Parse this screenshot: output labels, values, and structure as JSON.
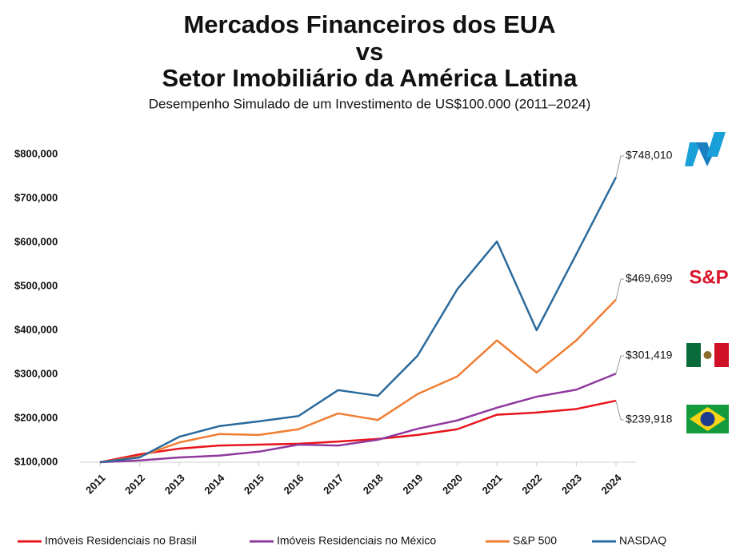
{
  "chart_data": {
    "type": "line",
    "title": [
      "Mercados Financeiros dos EUA",
      "vs",
      "Setor Imobiliário da América Latina"
    ],
    "subtitle": "Desempenho Simulado de um Investimento de US$100.000 (2011–2024)",
    "badge_text": "S&P",
    "categories": [
      "2011",
      "2012",
      "2013",
      "2014",
      "2015",
      "2016",
      "2017",
      "2018",
      "2019",
      "2020",
      "2021",
      "2022",
      "2023",
      "2024"
    ],
    "ylim": [
      100000,
      800000
    ],
    "yticks": [
      {
        "value": 100000,
        "label": "$100,000"
      },
      {
        "value": 200000,
        "label": "$200,000"
      },
      {
        "value": 300000,
        "label": "$300,000"
      },
      {
        "value": 400000,
        "label": "$400,000"
      },
      {
        "value": 500000,
        "label": "$500,000"
      },
      {
        "value": 600000,
        "label": "$600,000"
      },
      {
        "value": 700000,
        "label": "$700,000"
      },
      {
        "value": 800000,
        "label": "$800,000"
      }
    ],
    "series": [
      {
        "name": "Imóveis Residenciais no Brasil",
        "color": "#e8141b",
        "values": [
          100000,
          118000,
          131000,
          138000,
          140000,
          142000,
          147000,
          153000,
          162000,
          175000,
          208000,
          213000,
          221000,
          239918
        ],
        "value_labels": [
          null,
          null,
          null,
          null,
          null,
          null,
          null,
          null,
          null,
          null,
          null,
          null,
          null,
          "$239,918"
        ]
      },
      {
        "name": "Imóveis Residenciais no México",
        "color": "#8e3a9d",
        "values": [
          100000,
          104000,
          111000,
          115000,
          124000,
          140000,
          138000,
          151000,
          176000,
          195000,
          224000,
          249000,
          265000,
          301419
        ],
        "value_labels": [
          null,
          null,
          null,
          null,
          null,
          null,
          null,
          null,
          null,
          null,
          null,
          null,
          null,
          "$301,419"
        ]
      },
      {
        "name": "S&P 500",
        "color": "#ef7d31",
        "values": [
          100000,
          113000,
          145000,
          164000,
          162000,
          175000,
          211000,
          196000,
          255000,
          295000,
          377000,
          304000,
          377000,
          469699
        ],
        "value_labels": [
          null,
          null,
          null,
          null,
          null,
          null,
          null,
          null,
          null,
          null,
          null,
          null,
          null,
          "$469,699"
        ]
      },
      {
        "name": "NASDAQ",
        "color": "#2a6a9c",
        "values": [
          100000,
          111000,
          158000,
          182000,
          193000,
          205000,
          264000,
          251000,
          342000,
          493000,
          602000,
          400000,
          573000,
          748010
        ],
        "value_labels": [
          null,
          null,
          null,
          null,
          null,
          null,
          null,
          null,
          null,
          null,
          null,
          null,
          null,
          "$748,010"
        ]
      }
    ]
  }
}
